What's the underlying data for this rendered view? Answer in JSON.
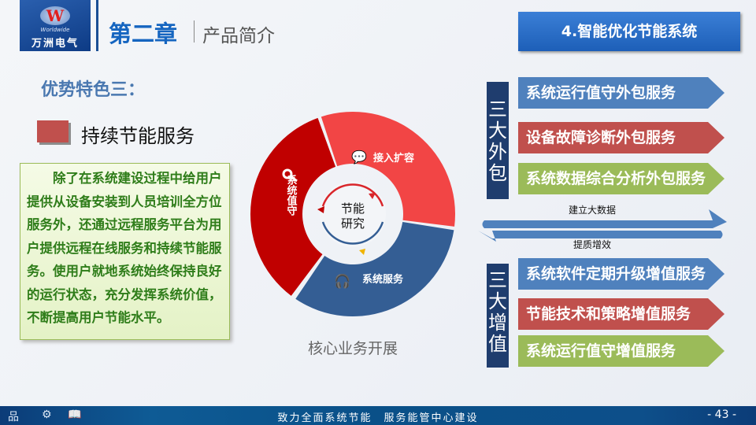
{
  "header": {
    "logo_text": "万洲电气",
    "logo_en": "Worldwide",
    "logo_letter": "W",
    "chapter": "第二章",
    "section": "产品简介",
    "tab": "4.智能优化节能系统"
  },
  "left": {
    "feature": "优势特色三：",
    "title": "持续节能服务",
    "description": "除了在系统建设过程中给用户提供从设备安装到人员培训全方位服务外，还通过远程服务平台为用户提供远程在线服务和持续节能服务。使用户就地系统始终保持良好的运行状态，充分发挥系统价值，不断提高用户节能水平。"
  },
  "donut": {
    "center_line1": "节能",
    "center_line2": "研究",
    "segments": [
      {
        "label": "接入扩容",
        "icon": "chat-icon",
        "color": "#f24545"
      },
      {
        "label": "系统服务",
        "icon": "headphones-icon",
        "color": "#345e94"
      },
      {
        "label": "系统值守",
        "icon": "key-icon",
        "color": "#c00000"
      }
    ],
    "caption": "核心业务开展"
  },
  "right": {
    "group1": "三大外包",
    "group2": "三大增值",
    "outsourcing": [
      "系统运行值守外包服务",
      "设备故障诊断外包服务",
      "系统数据综合分析外包服务"
    ],
    "value_added": [
      "系统软件定期升级增值服务",
      "节能技术和策略增值服务",
      "系统运行值守增值服务"
    ],
    "arrow_top": "建立大数据",
    "arrow_bottom": "提质增效",
    "colors": [
      "#4f81bd",
      "#c0504d",
      "#9bbb59"
    ]
  },
  "footer": {
    "slogan": "致力全面系统节能　服务能管中心建设",
    "page": "- 43 -",
    "icons": [
      "sitemap-icon",
      "gear-icon",
      "book-icon"
    ]
  }
}
